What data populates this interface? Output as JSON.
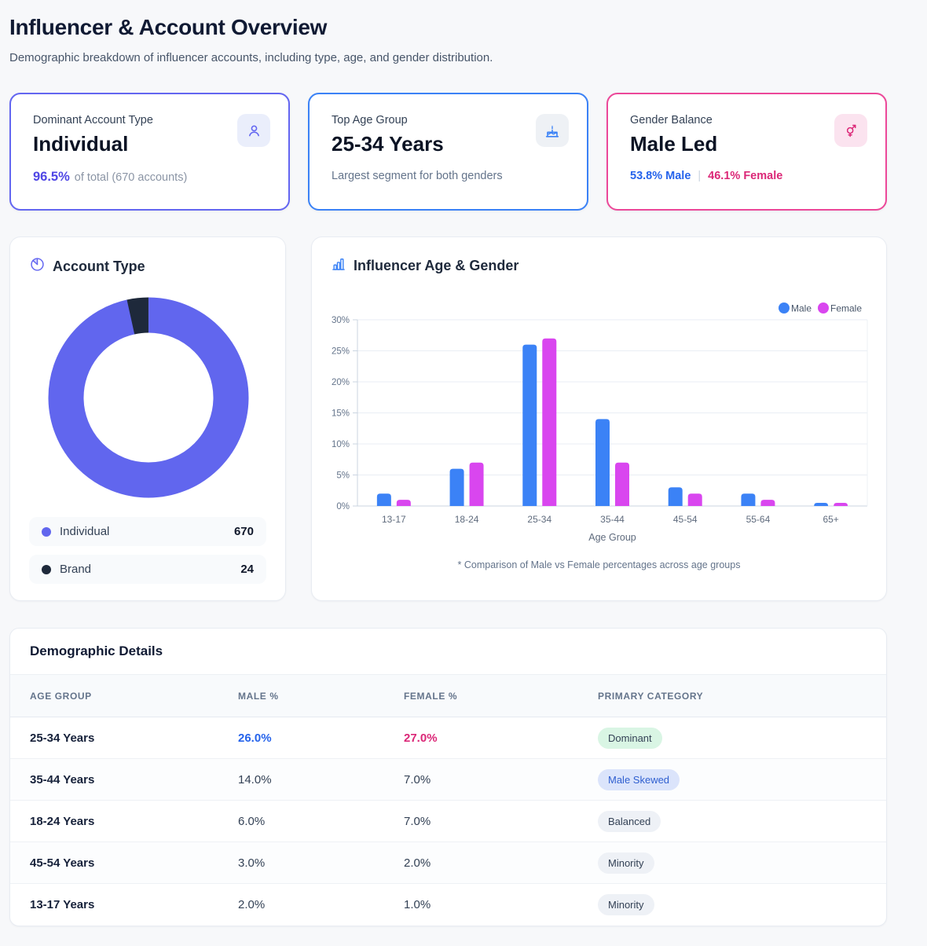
{
  "page": {
    "title": "Influencer & Account Overview",
    "subtitle": "Demographic breakdown of influencer accounts, including type, age, and gender distribution."
  },
  "stat_cards": [
    {
      "label": "Dominant Account Type",
      "value": "Individual",
      "pct": "96.5%",
      "pct_suffix": "of total (670 accounts)",
      "icon": "person-icon",
      "accent_color": "#6366f1"
    },
    {
      "label": "Top Age Group",
      "value": "25-34 Years",
      "description": "Largest segment for both genders",
      "icon": "cake-icon",
      "accent_color": "#3b82f6"
    },
    {
      "label": "Gender Balance",
      "value": "Male Led",
      "male_stat": "53.8% Male",
      "separator": "|",
      "female_stat": "46.1% Female",
      "icon": "gender-icon",
      "accent_color": "#ec4899"
    }
  ],
  "donut_card": {
    "title": "Account Type"
  },
  "bar_card": {
    "title": "Influencer Age & Gender"
  },
  "chart_data": [
    {
      "type": "pie",
      "donut": true,
      "title": "Account Type",
      "labels": [
        "Individual",
        "Brand"
      ],
      "values": [
        670,
        24
      ],
      "colors": [
        "#6166ee",
        "#1e293b"
      ],
      "legend_position": "bottom-list"
    },
    {
      "type": "bar",
      "title": "Influencer Age & Gender",
      "categories": [
        "13-17",
        "18-24",
        "25-34",
        "35-44",
        "45-54",
        "55-64",
        "65+"
      ],
      "series": [
        {
          "name": "Male",
          "color": "#3b82f6",
          "values": [
            2,
            6,
            26,
            14,
            3,
            2,
            0.5
          ]
        },
        {
          "name": "Female",
          "color": "#d946ef",
          "values": [
            1,
            7,
            27,
            7,
            2,
            1,
            0.5
          ]
        }
      ],
      "xlabel": "Age Group",
      "ylabel": "",
      "ylim": [
        0,
        30
      ],
      "ytick_step": 5,
      "ytick_suffix": "%",
      "grid": "horizontal",
      "legend_position": "top-right",
      "footnote": "* Comparison of Male vs Female percentages across age groups"
    }
  ],
  "table": {
    "title": "Demographic Details",
    "columns": [
      "AGE GROUP",
      "MALE %",
      "FEMALE %",
      "PRIMARY CATEGORY"
    ],
    "rows": [
      {
        "age_group": "25-34 Years",
        "male": "26.0%",
        "female": "27.0%",
        "badge": "Dominant",
        "badge_style": "green",
        "highlight": true
      },
      {
        "age_group": "35-44 Years",
        "male": "14.0%",
        "female": "7.0%",
        "badge": "Male Skewed",
        "badge_style": "blue",
        "highlight": false
      },
      {
        "age_group": "18-24 Years",
        "male": "6.0%",
        "female": "7.0%",
        "badge": "Balanced",
        "badge_style": "gray",
        "highlight": false
      },
      {
        "age_group": "45-54 Years",
        "male": "3.0%",
        "female": "2.0%",
        "badge": "Minority",
        "badge_style": "gray",
        "highlight": false
      },
      {
        "age_group": "13-17 Years",
        "male": "2.0%",
        "female": "1.0%",
        "badge": "Minority",
        "badge_style": "gray",
        "highlight": false
      }
    ]
  },
  "colors": {
    "male": "#3b82f6",
    "female": "#d946ef",
    "indigo_accent": "#6366f1",
    "pink_accent": "#ec4899",
    "individual": "#6166ee",
    "brand": "#1e293b"
  }
}
